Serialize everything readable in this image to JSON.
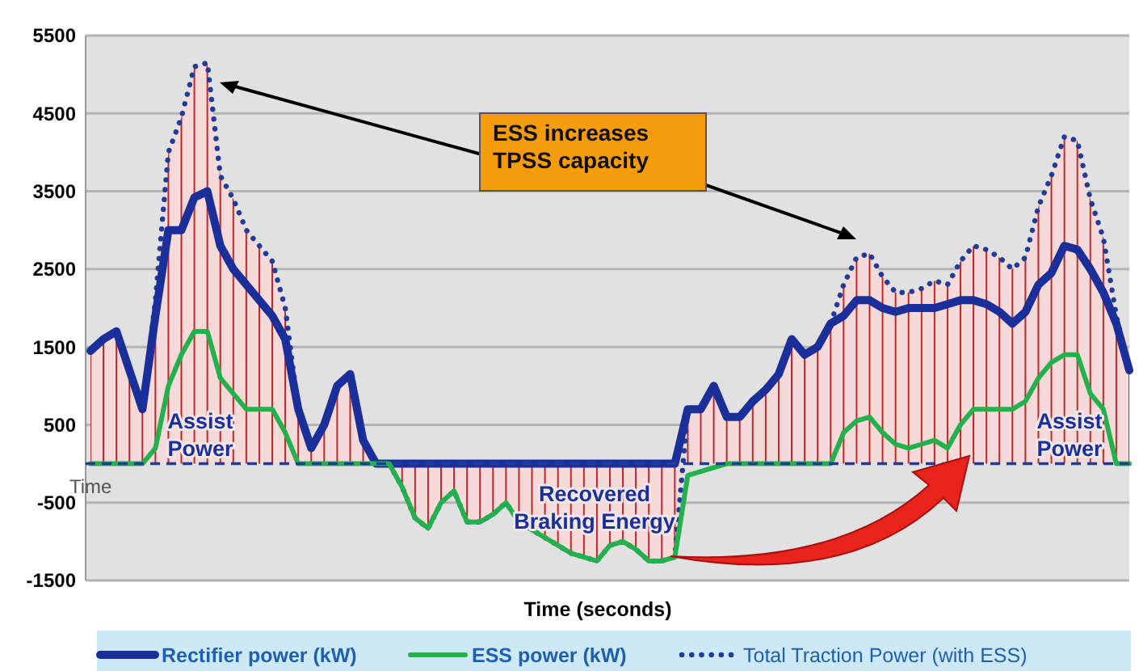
{
  "chart_data": {
    "type": "line",
    "xlabel": "Time (seconds)",
    "categories": [
      null,
      null,
      null,
      null,
      null,
      null,
      null,
      null,
      null,
      null,
      null,
      null,
      null,
      null,
      null,
      null,
      null,
      null,
      null,
      null,
      null,
      null,
      null,
      null,
      null,
      null,
      null,
      null,
      null,
      null,
      null,
      null,
      null,
      null,
      null,
      null,
      null,
      null,
      null,
      null,
      null,
      null,
      null,
      null,
      null,
      null,
      null,
      null,
      null,
      null,
      null,
      null,
      null,
      null,
      null,
      null,
      null,
      null,
      null,
      null,
      null,
      null,
      null,
      null,
      null,
      null,
      null,
      null,
      null,
      null,
      null,
      null,
      null,
      null,
      null,
      null,
      null,
      null,
      null,
      null,
      null
    ],
    "series": [
      {
        "name": "Rectifier power (kW)",
        "color": "#1a2f9a",
        "line_style": "solid",
        "values": [
          1450,
          1600,
          1700,
          1200,
          700,
          1900,
          3000,
          3000,
          3420,
          3500,
          2800,
          2500,
          2300,
          2100,
          1900,
          1600,
          700,
          200,
          500,
          1000,
          1150,
          300,
          0,
          0,
          0,
          0,
          0,
          0,
          0,
          0,
          0,
          0,
          0,
          0,
          0,
          0,
          0,
          0,
          0,
          0,
          0,
          0,
          0,
          0,
          0,
          0,
          700,
          700,
          1000,
          600,
          600,
          800,
          950,
          1150,
          1600,
          1400,
          1500,
          1800,
          1900,
          2100,
          2100,
          2000,
          1950,
          2000,
          2000,
          2000,
          2050,
          2100,
          2100,
          2050,
          1950,
          1800,
          1950,
          2300,
          2450,
          2800,
          2750,
          2500,
          2200,
          1800,
          1200
        ]
      },
      {
        "name": "ESS power (kW)",
        "color": "#22b14c",
        "line_style": "solid",
        "values": [
          0,
          0,
          0,
          0,
          0,
          200,
          1000,
          1400,
          1700,
          1700,
          1100,
          900,
          700,
          700,
          700,
          400,
          0,
          0,
          0,
          0,
          0,
          0,
          0,
          0,
          -300,
          -700,
          -830,
          -500,
          -350,
          -750,
          -750,
          -650,
          -500,
          -750,
          -850,
          -950,
          -1050,
          -1150,
          -1200,
          -1250,
          -1050,
          -1000,
          -1100,
          -1250,
          -1250,
          -1200,
          -150,
          -100,
          -50,
          0,
          0,
          0,
          0,
          0,
          0,
          0,
          0,
          0,
          400,
          550,
          600,
          400,
          250,
          200,
          250,
          300,
          200,
          500,
          700,
          700,
          700,
          700,
          800,
          1100,
          1300,
          1400,
          1400,
          900,
          700,
          0,
          0
        ]
      },
      {
        "name": "Total Traction Power (with ESS)",
        "type": "area",
        "color": "#1f3c99",
        "line_style": "dotted",
        "values": [
          1450,
          1600,
          1700,
          1200,
          700,
          2100,
          4000,
          4450,
          5100,
          5150,
          3700,
          3400,
          3000,
          2800,
          2600,
          2000,
          700,
          200,
          500,
          1000,
          1150,
          300,
          0,
          0,
          -300,
          -700,
          -830,
          -500,
          -350,
          -750,
          -750,
          -650,
          -500,
          -750,
          -850,
          -950,
          -1050,
          -1150,
          -1200,
          -1250,
          -1050,
          -1000,
          -1100,
          -1250,
          -1250,
          -1200,
          700,
          700,
          1000,
          600,
          600,
          800,
          950,
          1150,
          1600,
          1400,
          1500,
          1800,
          2300,
          2650,
          2700,
          2400,
          2200,
          2200,
          2250,
          2350,
          2300,
          2600,
          2800,
          2750,
          2650,
          2500,
          2650,
          3300,
          3700,
          4200,
          4150,
          3400,
          2900,
          1900,
          1200
        ]
      }
    ],
    "ylim": [
      -1500,
      5500
    ],
    "yticks": [
      -1500,
      -500,
      500,
      1500,
      2500,
      3500,
      4500,
      5500
    ],
    "grid": "y",
    "legend": "bottom",
    "marker": "none",
    "ref_lines": [
      {
        "axis": "y",
        "value": 0,
        "label": "Time",
        "color": "#1f3c99",
        "line_style": "dashed"
      }
    ],
    "annotations": [
      "ESS increases\nTPSS capacity",
      "Assist\nPower",
      "Recovered\nBraking Energy",
      "Assist\nPower"
    ]
  }
}
